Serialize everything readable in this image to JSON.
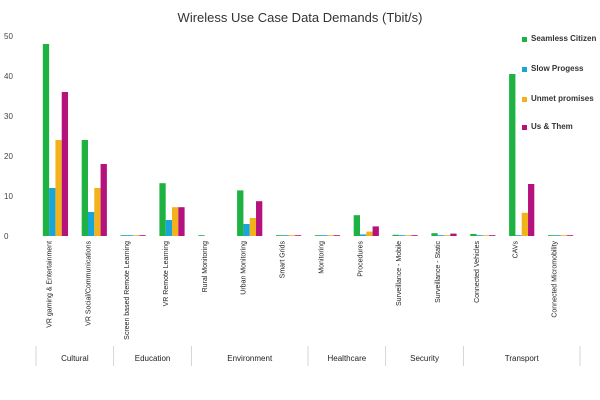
{
  "chart_data": {
    "type": "bar",
    "title": "Wireless Use Case Data Demands (Tbit/s)",
    "xlabel": "",
    "ylabel": "",
    "ylim": [
      0,
      50
    ],
    "yticks": [
      0,
      10,
      20,
      30,
      40,
      50
    ],
    "grid": false,
    "legend_position": "right",
    "categories": [
      "VR gaming & Entertainment",
      "VR Social/Communications",
      "Screen based Remote Learning",
      "VR Remote Learning",
      "Rural Monitoring",
      "Urban Monitoring",
      "Smart Grids",
      "Monitoring",
      "Procedures",
      "Surveillance - Mobile",
      "Surveillance - Static",
      "Connected Vehicles",
      "CAVs",
      "Connected Micromobility"
    ],
    "groups": [
      {
        "label": "Cultural",
        "count": 2
      },
      {
        "label": "Education",
        "count": 2
      },
      {
        "label": "Environment",
        "count": 3
      },
      {
        "label": "Healthcare",
        "count": 2
      },
      {
        "label": "Security",
        "count": 2
      },
      {
        "label": "Transport",
        "count": 3
      }
    ],
    "series": [
      {
        "name": "Seamless Citizen",
        "color": "#1db241",
        "values": [
          48,
          24,
          0.2,
          13.2,
          0.2,
          11.4,
          0.2,
          0.2,
          5.2,
          0.3,
          0.7,
          0.5,
          40.5,
          0.2
        ]
      },
      {
        "name": "Slow Progess",
        "color": "#18a5d8",
        "values": [
          12,
          6,
          0.2,
          4,
          0,
          3,
          0.1,
          0.1,
          0.4,
          0.1,
          0.2,
          0.1,
          0.2,
          0.1
        ]
      },
      {
        "name": "Unmet promises",
        "color": "#f2b21c",
        "values": [
          24,
          12,
          0.2,
          7.2,
          0,
          4.5,
          0.2,
          0.2,
          1.1,
          0.2,
          0.2,
          0.2,
          5.8,
          0.2
        ]
      },
      {
        "name": "Us & Them",
        "color": "#b5127e",
        "values": [
          36,
          18,
          0.2,
          7.2,
          0,
          8.7,
          0.2,
          0.2,
          2.4,
          0.2,
          0.6,
          0.2,
          13,
          0.2
        ]
      }
    ]
  }
}
